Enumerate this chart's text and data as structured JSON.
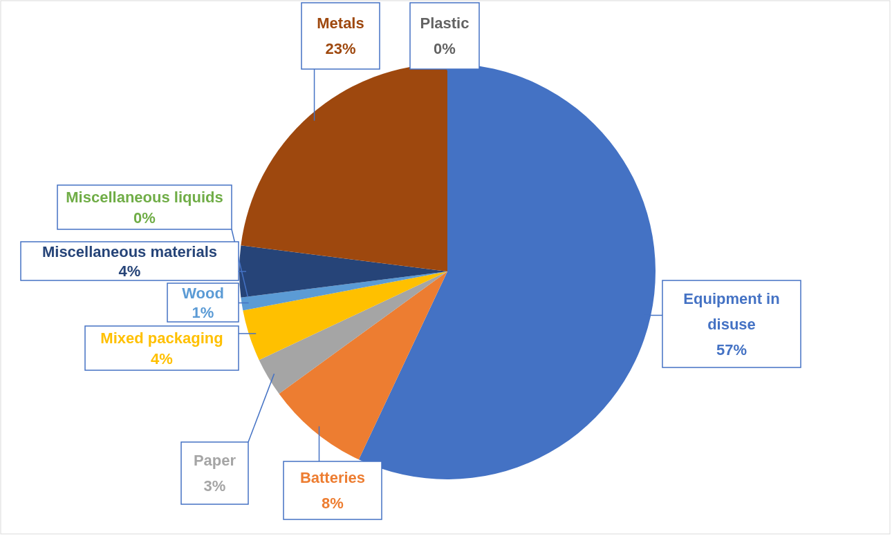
{
  "chart_data": {
    "type": "pie",
    "categories": [
      "Equipment in disuse",
      "Batteries",
      "Paper",
      "Mixed packaging",
      "Wood",
      "Miscellaneous liquids",
      "Miscellaneous materials",
      "Metals",
      "Plastic"
    ],
    "values": [
      57,
      8,
      3,
      4,
      1,
      0,
      4,
      23,
      0
    ],
    "value_labels": [
      "57%",
      "8%",
      "3%",
      "4%",
      "1%",
      "0%",
      "4%",
      "23%",
      "0%"
    ],
    "colors": [
      "#4472c4",
      "#ed7d31",
      "#a5a5a5",
      "#ffc000",
      "#5b9bd5",
      "#70ad47",
      "#264478",
      "#9e480e",
      "#636363"
    ]
  }
}
